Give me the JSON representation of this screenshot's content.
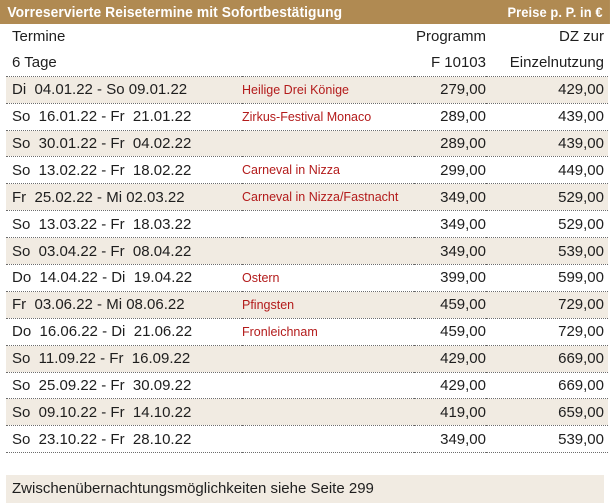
{
  "header": {
    "title": "Vorreservierte Reisetermine mit Sofortbestätigung",
    "prices_note": "Preise p. P. in €"
  },
  "columns": {
    "termine": "Termine",
    "programm": "Programm",
    "dz": "DZ zur",
    "duration": "6 Tage",
    "program_code": "F 10103",
    "dz_sub": "Einzelnutzung"
  },
  "rows": [
    {
      "range": "Di  04.01.22 - So 09.01.22",
      "event": "Heilige Drei Könige",
      "price": "279,00",
      "dz": "429,00"
    },
    {
      "range": "So  16.01.22 - Fr  21.01.22",
      "event": "Zirkus-Festival Monaco",
      "price": "289,00",
      "dz": "439,00"
    },
    {
      "range": "So  30.01.22 - Fr  04.02.22",
      "event": "",
      "price": "289,00",
      "dz": "439,00"
    },
    {
      "range": "So  13.02.22 - Fr  18.02.22",
      "event": "Carneval in Nizza",
      "price": "299,00",
      "dz": "449,00"
    },
    {
      "range": "Fr  25.02.22 - Mi 02.03.22",
      "event": "Carneval in Nizza/Fastnacht",
      "price": "349,00",
      "dz": "529,00"
    },
    {
      "range": "So  13.03.22 - Fr  18.03.22",
      "event": "",
      "price": "349,00",
      "dz": "529,00"
    },
    {
      "range": "So  03.04.22 - Fr  08.04.22",
      "event": "",
      "price": "349,00",
      "dz": "539,00"
    },
    {
      "range": "Do  14.04.22 - Di  19.04.22",
      "event": "Ostern",
      "price": "399,00",
      "dz": "599,00"
    },
    {
      "range": "Fr  03.06.22 - Mi 08.06.22",
      "event": "Pfingsten",
      "price": "459,00",
      "dz": "729,00"
    },
    {
      "range": "Do  16.06.22 - Di  21.06.22",
      "event": "Fronleichnam",
      "price": "459,00",
      "dz": "729,00"
    },
    {
      "range": "So  11.09.22 - Fr  16.09.22",
      "event": "",
      "price": "429,00",
      "dz": "669,00"
    },
    {
      "range": "So  25.09.22 - Fr  30.09.22",
      "event": "",
      "price": "429,00",
      "dz": "669,00"
    },
    {
      "range": "So  09.10.22 - Fr  14.10.22",
      "event": "",
      "price": "419,00",
      "dz": "659,00"
    },
    {
      "range": "So  23.10.22 - Fr  28.10.22",
      "event": "",
      "price": "349,00",
      "dz": "539,00"
    }
  ],
  "footer": {
    "note": "Zwischenübernachtungsmöglichkeiten siehe Seite 299"
  },
  "colors": {
    "header_bg": "#b08a52",
    "shade_bg": "#f1ebe2",
    "event_text": "#b31b1b"
  }
}
